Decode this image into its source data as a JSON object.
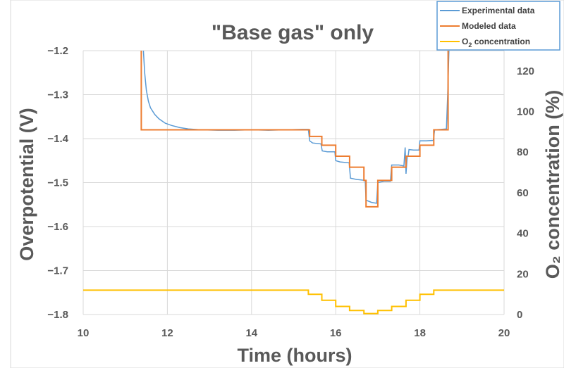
{
  "chart_data": {
    "type": "line",
    "title": "\"Base gas\" only",
    "xlabel": "Time (hours)",
    "ylabel": "Overpotential (V)",
    "y2label": "O₂ concentration (%)",
    "xlim": [
      10,
      20
    ],
    "ylim": [
      -1.8,
      -1.2
    ],
    "y2lim": [
      0,
      130
    ],
    "xticks": [
      10,
      12,
      14,
      16,
      18,
      20
    ],
    "yticks": [
      -1.8,
      -1.7,
      -1.6,
      -1.5,
      -1.4,
      -1.3,
      -1.2
    ],
    "y2ticks": [
      0,
      20,
      40,
      60,
      80,
      100,
      120
    ],
    "grid": true,
    "legend_position": "top-right",
    "colors": {
      "experimental": "#5b9bd5",
      "modeled": "#ed7d31",
      "o2": "#ffc000",
      "grid": "#d9d9d9",
      "text": "#595959"
    },
    "legend": [
      {
        "label": "Experimental data",
        "series": "experimental"
      },
      {
        "label": "Modeled data",
        "series": "modeled"
      },
      {
        "label": "O",
        "sub": "2",
        "rest": " concentration",
        "series": "o2"
      }
    ],
    "series": [
      {
        "name": "Experimental data",
        "axis": "left",
        "points": [
          [
            11.43,
            -1.19
          ],
          [
            11.46,
            -1.25
          ],
          [
            11.5,
            -1.29
          ],
          [
            11.55,
            -1.315
          ],
          [
            11.6,
            -1.33
          ],
          [
            11.7,
            -1.345
          ],
          [
            11.8,
            -1.355
          ],
          [
            11.95,
            -1.365
          ],
          [
            12.1,
            -1.37
          ],
          [
            12.3,
            -1.375
          ],
          [
            12.5,
            -1.378
          ],
          [
            12.8,
            -1.38
          ],
          [
            13.2,
            -1.381
          ],
          [
            13.6,
            -1.381
          ],
          [
            14.0,
            -1.38
          ],
          [
            14.4,
            -1.381
          ],
          [
            14.8,
            -1.38
          ],
          [
            15.2,
            -1.379
          ],
          [
            15.35,
            -1.379
          ],
          [
            15.38,
            -1.405
          ],
          [
            15.45,
            -1.41
          ],
          [
            15.65,
            -1.412
          ],
          [
            15.68,
            -1.428
          ],
          [
            15.8,
            -1.43
          ],
          [
            15.98,
            -1.43
          ],
          [
            16.0,
            -1.45
          ],
          [
            16.1,
            -1.453
          ],
          [
            16.32,
            -1.455
          ],
          [
            16.35,
            -1.49
          ],
          [
            16.5,
            -1.493
          ],
          [
            16.7,
            -1.495
          ],
          [
            16.72,
            -1.54
          ],
          [
            16.85,
            -1.545
          ],
          [
            16.97,
            -1.547
          ],
          [
            17.0,
            -1.5
          ],
          [
            17.15,
            -1.497
          ],
          [
            17.3,
            -1.497
          ],
          [
            17.33,
            -1.46
          ],
          [
            17.5,
            -1.46
          ],
          [
            17.62,
            -1.462
          ],
          [
            17.65,
            -1.42
          ],
          [
            17.67,
            -1.48
          ],
          [
            17.7,
            -1.44
          ],
          [
            17.72,
            -1.44
          ],
          [
            17.74,
            -1.425
          ],
          [
            17.85,
            -1.426
          ],
          [
            17.98,
            -1.426
          ],
          [
            18.0,
            -1.405
          ],
          [
            18.15,
            -1.405
          ],
          [
            18.32,
            -1.404
          ],
          [
            18.35,
            -1.38
          ],
          [
            18.5,
            -1.379
          ],
          [
            18.63,
            -1.378
          ],
          [
            18.66,
            -1.3
          ],
          [
            18.69,
            -1.2
          ]
        ]
      },
      {
        "name": "Modeled data",
        "axis": "left",
        "points": [
          [
            11.38,
            -1.2
          ],
          [
            11.38,
            -1.38
          ],
          [
            15.38,
            -1.38
          ],
          [
            15.38,
            -1.395
          ],
          [
            15.67,
            -1.395
          ],
          [
            15.67,
            -1.415
          ],
          [
            16.0,
            -1.415
          ],
          [
            16.0,
            -1.44
          ],
          [
            16.33,
            -1.44
          ],
          [
            16.33,
            -1.465
          ],
          [
            16.67,
            -1.465
          ],
          [
            16.67,
            -1.495
          ],
          [
            16.72,
            -1.495
          ],
          [
            16.72,
            -1.555
          ],
          [
            17.0,
            -1.555
          ],
          [
            17.0,
            -1.495
          ],
          [
            17.33,
            -1.495
          ],
          [
            17.33,
            -1.465
          ],
          [
            17.67,
            -1.465
          ],
          [
            17.67,
            -1.44
          ],
          [
            18.0,
            -1.44
          ],
          [
            18.0,
            -1.415
          ],
          [
            18.33,
            -1.415
          ],
          [
            18.33,
            -1.38
          ],
          [
            18.67,
            -1.38
          ],
          [
            18.67,
            -1.2
          ]
        ]
      },
      {
        "name": "O₂ concentration",
        "axis": "right",
        "points": [
          [
            10.0,
            12
          ],
          [
            15.35,
            12
          ],
          [
            15.35,
            10
          ],
          [
            15.67,
            10
          ],
          [
            15.67,
            7
          ],
          [
            16.0,
            7
          ],
          [
            16.0,
            4
          ],
          [
            16.33,
            4
          ],
          [
            16.33,
            2
          ],
          [
            16.67,
            2
          ],
          [
            16.67,
            0.5
          ],
          [
            17.0,
            0.5
          ],
          [
            17.0,
            2
          ],
          [
            17.33,
            2
          ],
          [
            17.33,
            4
          ],
          [
            17.67,
            4
          ],
          [
            17.67,
            7
          ],
          [
            18.0,
            7
          ],
          [
            18.0,
            10
          ],
          [
            18.33,
            10
          ],
          [
            18.33,
            12
          ],
          [
            20.0,
            12
          ]
        ]
      }
    ]
  }
}
